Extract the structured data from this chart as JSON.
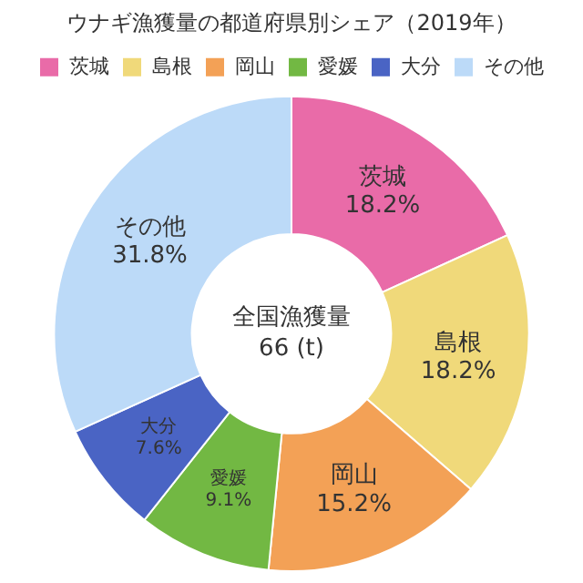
{
  "chart_data": {
    "type": "donut",
    "title": "ウナギ漁獲量の都道府県別シェア（2019年）",
    "categories": [
      "茨城",
      "島根",
      "岡山",
      "愛媛",
      "大分",
      "その他"
    ],
    "values": [
      18.2,
      18.2,
      15.2,
      9.1,
      7.6,
      31.8
    ],
    "colors": [
      "#e96ba8",
      "#f0d97a",
      "#f3a156",
      "#72b843",
      "#4a64c4",
      "#bcdaf8"
    ],
    "value_labels": [
      "18.2%",
      "18.2%",
      "15.2%",
      "9.1%",
      "7.6%",
      "31.8%"
    ],
    "legend": "top",
    "annotations": [
      "全国漁獲量",
      "66 (t)"
    ]
  }
}
